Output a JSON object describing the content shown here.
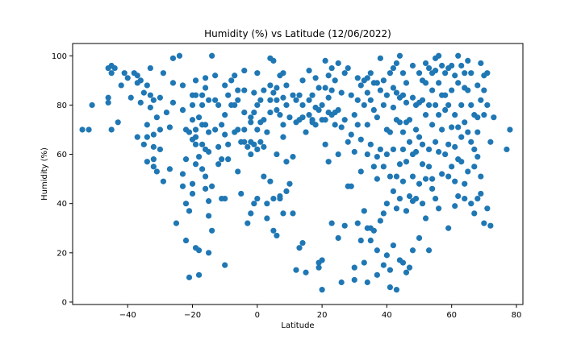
{
  "chart_data": {
    "type": "scatter",
    "title": "Humidity (%) vs Latitude (12/06/2022)",
    "xlabel": "Latitude",
    "ylabel": "Humidity (%)",
    "xlim": [
      -57,
      82
    ],
    "ylim": [
      -1,
      105
    ],
    "xticks": [
      -40,
      -20,
      0,
      20,
      40,
      60,
      80
    ],
    "yticks": [
      0,
      20,
      40,
      60,
      80,
      100
    ],
    "grid": false,
    "marker_color": "#1f77b4",
    "points": [
      [
        -54,
        70
      ],
      [
        -52,
        70
      ],
      [
        -51,
        80
      ],
      [
        -46,
        95
      ],
      [
        -46,
        83
      ],
      [
        -46,
        81
      ],
      [
        -45,
        96
      ],
      [
        -45,
        93
      ],
      [
        -45,
        70
      ],
      [
        -44,
        95
      ],
      [
        -43,
        73
      ],
      [
        -42,
        88
      ],
      [
        -41,
        93
      ],
      [
        -40,
        91
      ],
      [
        -39,
        83
      ],
      [
        -38,
        93
      ],
      [
        -37,
        89
      ],
      [
        -37,
        92
      ],
      [
        -37,
        67
      ],
      [
        -36,
        90
      ],
      [
        -36,
        81
      ],
      [
        -35,
        85
      ],
      [
        -35,
        64
      ],
      [
        -34,
        72
      ],
      [
        -34,
        88
      ],
      [
        -34,
        67
      ],
      [
        -34,
        57
      ],
      [
        -33,
        95
      ],
      [
        -33,
        84
      ],
      [
        -33,
        79
      ],
      [
        -32,
        82
      ],
      [
        -32,
        68
      ],
      [
        -32,
        63
      ],
      [
        -32,
        58
      ],
      [
        -32,
        55
      ],
      [
        -31,
        75
      ],
      [
        -31,
        53
      ],
      [
        -30,
        83
      ],
      [
        -30,
        70
      ],
      [
        -30,
        62
      ],
      [
        -29,
        93
      ],
      [
        -29,
        49
      ],
      [
        -28,
        77
      ],
      [
        -27,
        71
      ],
      [
        -27,
        54
      ],
      [
        -26,
        99
      ],
      [
        -26,
        89
      ],
      [
        -26,
        81
      ],
      [
        -25,
        32
      ],
      [
        -24,
        100
      ],
      [
        -23,
        88
      ],
      [
        -23,
        78
      ],
      [
        -23,
        52
      ],
      [
        -23,
        47
      ],
      [
        -22,
        70
      ],
      [
        -22,
        58
      ],
      [
        -22,
        40
      ],
      [
        -22,
        25
      ],
      [
        -21,
        69
      ],
      [
        -21,
        10
      ],
      [
        -21,
        37
      ],
      [
        -20,
        84
      ],
      [
        -20,
        80
      ],
      [
        -20,
        74
      ],
      [
        -20,
        66
      ],
      [
        -20,
        48
      ],
      [
        -20,
        44
      ],
      [
        -19,
        90
      ],
      [
        -19,
        84
      ],
      [
        -19,
        70
      ],
      [
        -19,
        67
      ],
      [
        -19,
        64
      ],
      [
        -19,
        56
      ],
      [
        -19,
        22
      ],
      [
        -18,
        75
      ],
      [
        -18,
        59
      ],
      [
        -18,
        21
      ],
      [
        -18,
        11
      ],
      [
        -17,
        84
      ],
      [
        -17,
        80
      ],
      [
        -17,
        72
      ],
      [
        -17,
        64
      ],
      [
        -17,
        54
      ],
      [
        -16,
        91
      ],
      [
        -16,
        87
      ],
      [
        -16,
        72
      ],
      [
        -16,
        62
      ],
      [
        -16,
        51
      ],
      [
        -16,
        46
      ],
      [
        -15,
        82
      ],
      [
        -15,
        69
      ],
      [
        -15,
        61
      ],
      [
        -15,
        41
      ],
      [
        -15,
        35
      ],
      [
        -15,
        20
      ],
      [
        -14,
        100
      ],
      [
        -14,
        47
      ],
      [
        -14,
        29
      ],
      [
        -13,
        92
      ],
      [
        -13,
        82
      ],
      [
        -13,
        70
      ],
      [
        -12,
        80
      ],
      [
        -12,
        63
      ],
      [
        -12,
        56
      ],
      [
        -11,
        72
      ],
      [
        -11,
        58
      ],
      [
        -11,
        42
      ],
      [
        -10,
        88
      ],
      [
        -10,
        76
      ],
      [
        -10,
        68
      ],
      [
        -10,
        42
      ],
      [
        -10,
        15
      ],
      [
        -9,
        84
      ],
      [
        -9,
        64
      ],
      [
        -9,
        58
      ],
      [
        -8,
        90
      ],
      [
        -8,
        80
      ],
      [
        -7,
        92
      ],
      [
        -7,
        80
      ],
      [
        -7,
        69
      ],
      [
        -6,
        86
      ],
      [
        -6,
        82
      ],
      [
        -6,
        70
      ],
      [
        -6,
        53
      ],
      [
        -5,
        65
      ],
      [
        -5,
        44
      ],
      [
        -4,
        94
      ],
      [
        -4,
        86
      ],
      [
        -4,
        77
      ],
      [
        -4,
        70
      ],
      [
        -4,
        65
      ],
      [
        -3,
        63
      ],
      [
        -3,
        32
      ],
      [
        -2,
        75
      ],
      [
        -2,
        73
      ],
      [
        -2,
        65
      ],
      [
        -2,
        60
      ],
      [
        -2,
        36
      ],
      [
        -1,
        85
      ],
      [
        -1,
        77
      ],
      [
        -1,
        64
      ],
      [
        -1,
        40
      ],
      [
        0,
        80
      ],
      [
        0,
        70
      ],
      [
        0,
        62
      ],
      [
        0,
        42
      ],
      [
        0,
        93
      ],
      [
        1,
        82
      ],
      [
        1,
        73
      ],
      [
        1,
        65
      ],
      [
        2,
        86
      ],
      [
        2,
        74
      ],
      [
        2,
        63
      ],
      [
        2,
        51
      ],
      [
        3,
        69
      ],
      [
        3,
        40
      ],
      [
        3,
        34
      ],
      [
        4,
        99
      ],
      [
        4,
        88
      ],
      [
        4,
        82
      ],
      [
        4,
        77
      ],
      [
        4,
        49
      ],
      [
        5,
        98
      ],
      [
        5,
        85
      ],
      [
        5,
        42
      ],
      [
        5,
        29
      ],
      [
        6,
        87
      ],
      [
        6,
        82
      ],
      [
        6,
        78
      ],
      [
        6,
        60
      ],
      [
        6,
        27
      ],
      [
        7,
        92
      ],
      [
        7,
        76
      ],
      [
        7,
        43
      ],
      [
        7,
        42
      ],
      [
        8,
        93
      ],
      [
        8,
        83
      ],
      [
        8,
        72
      ],
      [
        8,
        67
      ],
      [
        8,
        36
      ],
      [
        9,
        88
      ],
      [
        9,
        80
      ],
      [
        9,
        57
      ],
      [
        9,
        45
      ],
      [
        10,
        75
      ],
      [
        10,
        48
      ],
      [
        11,
        84
      ],
      [
        11,
        36
      ],
      [
        11,
        59
      ],
      [
        12,
        82
      ],
      [
        12,
        73
      ],
      [
        12,
        13
      ],
      [
        13,
        84
      ],
      [
        13,
        74
      ],
      [
        13,
        22
      ],
      [
        14,
        90
      ],
      [
        14,
        80
      ],
      [
        14,
        75
      ],
      [
        14,
        24
      ],
      [
        15,
        69
      ],
      [
        15,
        12
      ],
      [
        16,
        94
      ],
      [
        16,
        82
      ],
      [
        16,
        76
      ],
      [
        17,
        84
      ],
      [
        17,
        74
      ],
      [
        17,
        73
      ],
      [
        18,
        91
      ],
      [
        18,
        79
      ],
      [
        18,
        72
      ],
      [
        19,
        87
      ],
      [
        19,
        78
      ],
      [
        19,
        16
      ],
      [
        19,
        14
      ],
      [
        20,
        80
      ],
      [
        20,
        74
      ],
      [
        20,
        17
      ],
      [
        20,
        5
      ],
      [
        21,
        98
      ],
      [
        21,
        87
      ],
      [
        21,
        74
      ],
      [
        21,
        64
      ],
      [
        22,
        92
      ],
      [
        22,
        83
      ],
      [
        22,
        77
      ],
      [
        22,
        57
      ],
      [
        23,
        95
      ],
      [
        23,
        86
      ],
      [
        23,
        76
      ],
      [
        23,
        32
      ],
      [
        24,
        90
      ],
      [
        24,
        77
      ],
      [
        24,
        72
      ],
      [
        25,
        97
      ],
      [
        25,
        78
      ],
      [
        25,
        60
      ],
      [
        25,
        26
      ],
      [
        26,
        85
      ],
      [
        26,
        71
      ],
      [
        26,
        8
      ],
      [
        27,
        93
      ],
      [
        27,
        74
      ],
      [
        27,
        31
      ],
      [
        28,
        95
      ],
      [
        28,
        65
      ],
      [
        28,
        47
      ],
      [
        29,
        84
      ],
      [
        29,
        68
      ],
      [
        29,
        47
      ],
      [
        30,
        76
      ],
      [
        30,
        61
      ],
      [
        30,
        14
      ],
      [
        30,
        9
      ],
      [
        31,
        91
      ],
      [
        31,
        82
      ],
      [
        31,
        72
      ],
      [
        31,
        32
      ],
      [
        32,
        88
      ],
      [
        32,
        66
      ],
      [
        32,
        53
      ],
      [
        32,
        25
      ],
      [
        33,
        90
      ],
      [
        33,
        80
      ],
      [
        33,
        37
      ],
      [
        33,
        16
      ],
      [
        34,
        91
      ],
      [
        34,
        85
      ],
      [
        34,
        72
      ],
      [
        34,
        60
      ],
      [
        34,
        30
      ],
      [
        34,
        8
      ],
      [
        35,
        93
      ],
      [
        35,
        82
      ],
      [
        35,
        64
      ],
      [
        35,
        30
      ],
      [
        35,
        25
      ],
      [
        36,
        89
      ],
      [
        36,
        78
      ],
      [
        36,
        55
      ],
      [
        36,
        29
      ],
      [
        37,
        89
      ],
      [
        37,
        75
      ],
      [
        37,
        59
      ],
      [
        37,
        50
      ],
      [
        37,
        21
      ],
      [
        37,
        11
      ],
      [
        38,
        99
      ],
      [
        38,
        86
      ],
      [
        38,
        62
      ],
      [
        38,
        33
      ],
      [
        39,
        90
      ],
      [
        39,
        80
      ],
      [
        39,
        55
      ],
      [
        39,
        36
      ],
      [
        39,
        15
      ],
      [
        40,
        84
      ],
      [
        40,
        70
      ],
      [
        40,
        60
      ],
      [
        40,
        40
      ],
      [
        40,
        19
      ],
      [
        41,
        93
      ],
      [
        41,
        69
      ],
      [
        41,
        51
      ],
      [
        41,
        13
      ],
      [
        41,
        6
      ],
      [
        42,
        95
      ],
      [
        42,
        87
      ],
      [
        42,
        79
      ],
      [
        42,
        62
      ],
      [
        42,
        45
      ],
      [
        42,
        23
      ],
      [
        43,
        97
      ],
      [
        43,
        85
      ],
      [
        43,
        74
      ],
      [
        43,
        51
      ],
      [
        43,
        38
      ],
      [
        43,
        5
      ],
      [
        44,
        100
      ],
      [
        44,
        83
      ],
      [
        44,
        73
      ],
      [
        44,
        56
      ],
      [
        44,
        42
      ],
      [
        44,
        17
      ],
      [
        45,
        93
      ],
      [
        45,
        84
      ],
      [
        45,
        69
      ],
      [
        45,
        62
      ],
      [
        45,
        49
      ],
      [
        45,
        16
      ],
      [
        46,
        89
      ],
      [
        46,
        81
      ],
      [
        46,
        73
      ],
      [
        46,
        57
      ],
      [
        46,
        37
      ],
      [
        46,
        12
      ],
      [
        47,
        74
      ],
      [
        47,
        65
      ],
      [
        47,
        43
      ],
      [
        47,
        14
      ],
      [
        48,
        96
      ],
      [
        48,
        83
      ],
      [
        48,
        60
      ],
      [
        48,
        51
      ],
      [
        48,
        41
      ],
      [
        48,
        21
      ],
      [
        49,
        80
      ],
      [
        49,
        70
      ],
      [
        49,
        61
      ],
      [
        49,
        42
      ],
      [
        50,
        93
      ],
      [
        50,
        81
      ],
      [
        50,
        67
      ],
      [
        50,
        48
      ],
      [
        50,
        26
      ],
      [
        51,
        90
      ],
      [
        51,
        82
      ],
      [
        51,
        64
      ],
      [
        51,
        56
      ],
      [
        51,
        40
      ],
      [
        52,
        97
      ],
      [
        52,
        89
      ],
      [
        52,
        76
      ],
      [
        52,
        50
      ],
      [
        52,
        34
      ],
      [
        53,
        95
      ],
      [
        53,
        80
      ],
      [
        53,
        62
      ],
      [
        53,
        55
      ],
      [
        53,
        21
      ],
      [
        54,
        93
      ],
      [
        54,
        86
      ],
      [
        54,
        72
      ],
      [
        54,
        50
      ],
      [
        54,
        46
      ],
      [
        55,
        99
      ],
      [
        55,
        94
      ],
      [
        55,
        80
      ],
      [
        55,
        65
      ],
      [
        55,
        42
      ],
      [
        56,
        100
      ],
      [
        56,
        89
      ],
      [
        56,
        76
      ],
      [
        56,
        61
      ],
      [
        56,
        38
      ],
      [
        57,
        96
      ],
      [
        57,
        84
      ],
      [
        57,
        70
      ],
      [
        57,
        52
      ],
      [
        58,
        93
      ],
      [
        58,
        84
      ],
      [
        58,
        78
      ],
      [
        58,
        60
      ],
      [
        59,
        95
      ],
      [
        59,
        80
      ],
      [
        59,
        64
      ],
      [
        59,
        51
      ],
      [
        59,
        30
      ],
      [
        60,
        96
      ],
      [
        60,
        86
      ],
      [
        60,
        71
      ],
      [
        60,
        55
      ],
      [
        61,
        92
      ],
      [
        61,
        76
      ],
      [
        61,
        63
      ],
      [
        61,
        49
      ],
      [
        61,
        39
      ],
      [
        62,
        100
      ],
      [
        62,
        89
      ],
      [
        62,
        71
      ],
      [
        62,
        58
      ],
      [
        62,
        43
      ],
      [
        63,
        96
      ],
      [
        63,
        80
      ],
      [
        63,
        67
      ],
      [
        63,
        57
      ],
      [
        64,
        93
      ],
      [
        64,
        87
      ],
      [
        64,
        73
      ],
      [
        64,
        48
      ],
      [
        64,
        42
      ],
      [
        65,
        98
      ],
      [
        65,
        86
      ],
      [
        65,
        69
      ],
      [
        65,
        53
      ],
      [
        66,
        93
      ],
      [
        66,
        80
      ],
      [
        66,
        65
      ],
      [
        66,
        40
      ],
      [
        67,
        76
      ],
      [
        67,
        62
      ],
      [
        67,
        55
      ],
      [
        67,
        36
      ],
      [
        68,
        88
      ],
      [
        68,
        75
      ],
      [
        68,
        69
      ],
      [
        68,
        59
      ],
      [
        68,
        42
      ],
      [
        69,
        97
      ],
      [
        69,
        82
      ],
      [
        69,
        51
      ],
      [
        69,
        44
      ],
      [
        70,
        92
      ],
      [
        70,
        86
      ],
      [
        70,
        76
      ],
      [
        70,
        32
      ],
      [
        71,
        93
      ],
      [
        71,
        80
      ],
      [
        71,
        38
      ],
      [
        72,
        65
      ],
      [
        72,
        31
      ],
      [
        73,
        75
      ],
      [
        77,
        62
      ],
      [
        78,
        70
      ]
    ]
  }
}
